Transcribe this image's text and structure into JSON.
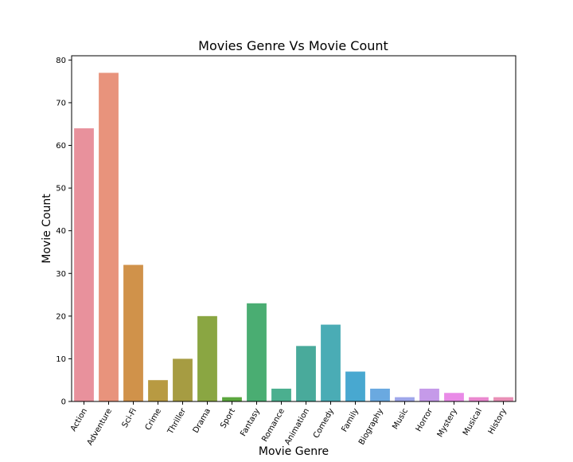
{
  "chart_data": {
    "type": "bar",
    "title": "Movies Genre Vs Movie Count",
    "xlabel": "Movie Genre",
    "ylabel": "Movie Count",
    "ylim": [
      0,
      81
    ],
    "yticks": [
      0,
      10,
      20,
      30,
      40,
      50,
      60,
      70,
      80
    ],
    "grid": false,
    "categories": [
      "Action",
      "Adventure",
      "Sci-Fi",
      "Crime",
      "Thriller",
      "Drama",
      "Sport",
      "Fantasy",
      "Romance",
      "Animation",
      "Comedy",
      "Family",
      "Biography",
      "Music",
      "Horror",
      "Mystery",
      "Musical",
      "History"
    ],
    "values": [
      64,
      77,
      32,
      5,
      10,
      20,
      1,
      23,
      3,
      13,
      18,
      7,
      3,
      1,
      3,
      2,
      1,
      1
    ],
    "colors": [
      "#e8919c",
      "#e8937c",
      "#d0924a",
      "#b89a42",
      "#a69c42",
      "#8aa642",
      "#5ba63e",
      "#4aad72",
      "#4baf8f",
      "#49aa9b",
      "#4aacb5",
      "#48a8d0",
      "#6aa9e0",
      "#9ea6ea",
      "#c59ae9",
      "#e98be7",
      "#ea88cf",
      "#e98fb6"
    ]
  }
}
